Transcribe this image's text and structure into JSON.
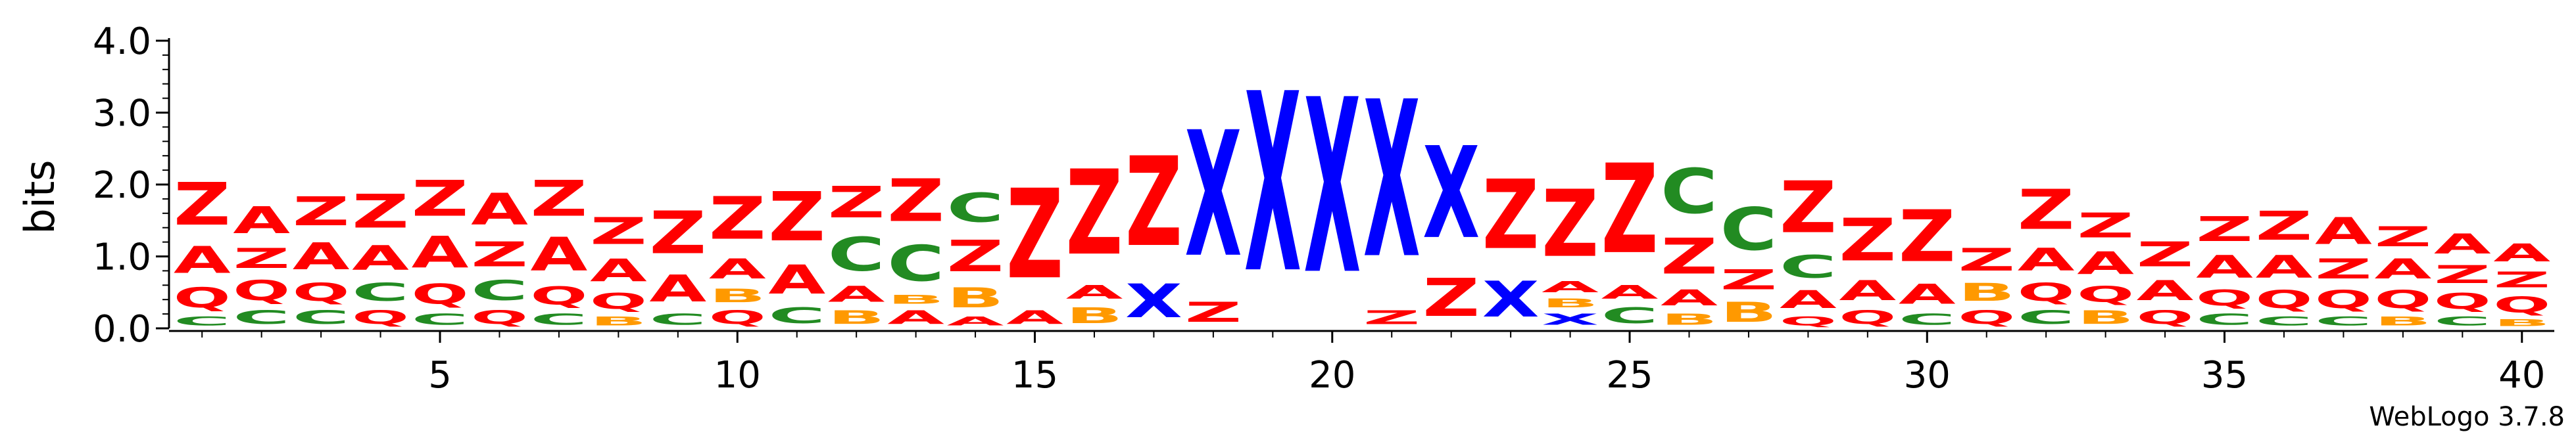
{
  "chart_data": {
    "type": "sequence-logo",
    "ylabel": "bits",
    "footer": "WebLogo 3.7.8",
    "ylim": [
      0,
      4.0
    ],
    "y_ticks": [
      "0.0",
      "1.0",
      "2.0",
      "3.0",
      "4.0"
    ],
    "x_ticks": [
      "5",
      "10",
      "15",
      "20",
      "25",
      "30",
      "35",
      "40"
    ],
    "x_tick_values": [
      5,
      10,
      15,
      20,
      25,
      30,
      35,
      40
    ],
    "n_positions": 40,
    "colors": {
      "Z": "#ff0000",
      "A": "#ff0000",
      "Q": "#ff0000",
      "X": "#0000ff",
      "C": "#228b22",
      "B": "#ff9900"
    },
    "columns": [
      [
        [
          "C",
          0.2
        ],
        [
          "Q",
          0.45
        ],
        [
          "A",
          0.6
        ],
        [
          "Z",
          0.95
        ]
      ],
      [
        [
          "C",
          0.3
        ],
        [
          "Q",
          0.45
        ],
        [
          "Z",
          0.45
        ],
        [
          "A",
          0.6
        ]
      ],
      [
        [
          "C",
          0.3
        ],
        [
          "Q",
          0.4
        ],
        [
          "A",
          0.6
        ],
        [
          "Z",
          0.65
        ]
      ],
      [
        [
          "Q",
          0.3
        ],
        [
          "C",
          0.4
        ],
        [
          "A",
          0.55
        ],
        [
          "Z",
          0.75
        ]
      ],
      [
        [
          "C",
          0.25
        ],
        [
          "Q",
          0.45
        ],
        [
          "A",
          0.7
        ],
        [
          "Z",
          0.8
        ]
      ],
      [
        [
          "Q",
          0.3
        ],
        [
          "C",
          0.45
        ],
        [
          "Z",
          0.55
        ],
        [
          "A",
          0.7
        ]
      ],
      [
        [
          "C",
          0.25
        ],
        [
          "Q",
          0.4
        ],
        [
          "A",
          0.75
        ],
        [
          "Z",
          0.8
        ]
      ],
      [
        [
          "B",
          0.2
        ],
        [
          "Q",
          0.35
        ],
        [
          "A",
          0.5
        ],
        [
          "Z",
          0.6
        ]
      ],
      [
        [
          "C",
          0.25
        ],
        [
          "A",
          0.6
        ],
        [
          "Z",
          0.95
        ]
      ],
      [
        [
          "Q",
          0.3
        ],
        [
          "B",
          0.3
        ],
        [
          "A",
          0.45
        ],
        [
          "Z",
          0.95
        ]
      ],
      [
        [
          "C",
          0.35
        ],
        [
          "A",
          0.65
        ],
        [
          "Z",
          1.1
        ]
      ],
      [
        [
          "B",
          0.3
        ],
        [
          "A",
          0.35
        ],
        [
          "C",
          0.75
        ],
        [
          "Z",
          0.7
        ]
      ],
      [
        [
          "A",
          0.3
        ],
        [
          "B",
          0.2
        ],
        [
          "C",
          0.8
        ],
        [
          "Z",
          0.95
        ]
      ],
      [
        [
          "A",
          0.2
        ],
        [
          "B",
          0.45
        ],
        [
          "Z",
          0.7
        ],
        [
          "C",
          0.65
        ]
      ],
      [
        [
          "A",
          0.3
        ],
        [
          "Z",
          2.0
        ]
      ],
      [
        [
          "B",
          0.35
        ],
        [
          "A",
          0.3
        ],
        [
          "Z",
          1.9
        ]
      ],
      [
        [
          "X",
          0.75
        ],
        [
          "Z",
          2.0
        ]
      ],
      [
        [
          "Z",
          0.45
        ],
        [
          "X",
          2.8
        ]
      ],
      [
        [
          "X",
          4.0
        ]
      ],
      [
        [
          "X",
          3.9
        ]
      ],
      [
        [
          "Z",
          0.3
        ],
        [
          "X",
          3.5
        ]
      ],
      [
        [
          "Z",
          0.85
        ],
        [
          "X",
          2.05
        ]
      ],
      [
        [
          "X",
          0.8
        ],
        [
          "Z",
          1.55
        ]
      ],
      [
        [
          "X",
          0.25
        ],
        [
          "B",
          0.2
        ],
        [
          "A",
          0.25
        ],
        [
          "Z",
          1.5
        ]
      ],
      [
        [
          "C",
          0.35
        ],
        [
          "A",
          0.3
        ],
        [
          "Z",
          2.0
        ]
      ],
      [
        [
          "B",
          0.25
        ],
        [
          "A",
          0.35
        ],
        [
          "Z",
          0.8
        ],
        [
          "C",
          1.0
        ]
      ],
      [
        [
          "B",
          0.45
        ],
        [
          "Z",
          0.45
        ],
        [
          "C",
          0.95
        ]
      ],
      [
        [
          "Q",
          0.2
        ],
        [
          "A",
          0.4
        ],
        [
          "C",
          0.5
        ],
        [
          "Z",
          1.15
        ]
      ],
      [
        [
          "Q",
          0.3
        ],
        [
          "A",
          0.45
        ],
        [
          "Z",
          0.95
        ]
      ],
      [
        [
          "C",
          0.25
        ],
        [
          "A",
          0.45
        ],
        [
          "Z",
          1.15
        ]
      ],
      [
        [
          "Q",
          0.3
        ],
        [
          "B",
          0.4
        ],
        [
          "Z",
          0.5
        ]
      ],
      [
        [
          "C",
          0.3
        ],
        [
          "Q",
          0.4
        ],
        [
          "A",
          0.5
        ],
        [
          "Z",
          0.9
        ]
      ],
      [
        [
          "B",
          0.3
        ],
        [
          "Q",
          0.35
        ],
        [
          "A",
          0.5
        ],
        [
          "Z",
          0.55
        ]
      ],
      [
        [
          "Q",
          0.3
        ],
        [
          "A",
          0.45
        ],
        [
          "Z",
          0.55
        ]
      ],
      [
        [
          "C",
          0.25
        ],
        [
          "Q",
          0.35
        ],
        [
          "A",
          0.5
        ],
        [
          "Z",
          0.55
        ]
      ],
      [
        [
          "C",
          0.2
        ],
        [
          "Q",
          0.4
        ],
        [
          "A",
          0.5
        ],
        [
          "Z",
          0.65
        ]
      ],
      [
        [
          "C",
          0.2
        ],
        [
          "Q",
          0.4
        ],
        [
          "Z",
          0.45
        ],
        [
          "A",
          0.6
        ]
      ],
      [
        [
          "B",
          0.2
        ],
        [
          "Q",
          0.4
        ],
        [
          "A",
          0.45
        ],
        [
          "Z",
          0.45
        ]
      ],
      [
        [
          "C",
          0.2
        ],
        [
          "Q",
          0.35
        ],
        [
          "Z",
          0.4
        ],
        [
          "A",
          0.45
        ]
      ],
      [
        [
          "B",
          0.15
        ],
        [
          "Q",
          0.35
        ],
        [
          "Z",
          0.35
        ],
        [
          "A",
          0.4
        ]
      ]
    ]
  }
}
